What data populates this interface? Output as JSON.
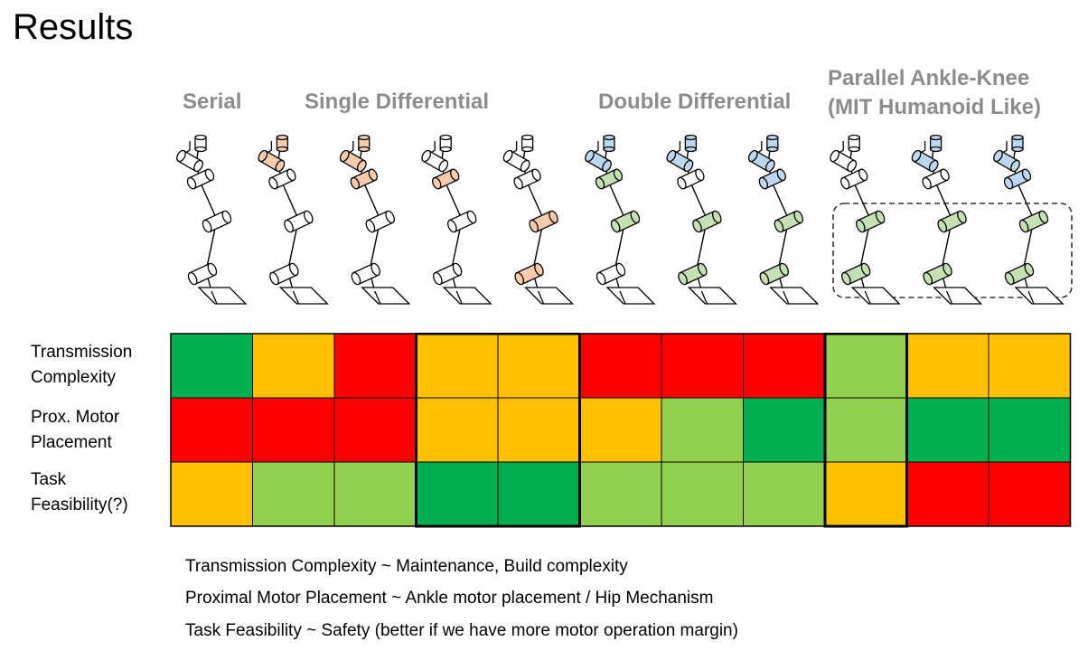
{
  "slide": {
    "title": "Results"
  },
  "categories": {
    "serial": "Serial",
    "single_differential": "Single Differential",
    "double_differential": "Double Differential",
    "parallel_line1": "Parallel Ankle-Knee",
    "parallel_line2": "(MIT Humanoid Like)"
  },
  "colors": {
    "red": "#ff0000",
    "orange": "#ffc000",
    "light_green": "#92d050",
    "dark_green": "#00b050",
    "joint_white": "#ffffff",
    "joint_orange": "#f8cbad",
    "joint_blue": "#bdd7ee",
    "joint_green": "#c5e0b4"
  },
  "robots": [
    [
      "joint_white",
      "joint_white",
      "joint_white",
      "joint_white"
    ],
    [
      "joint_orange",
      "joint_white",
      "joint_white",
      "joint_white"
    ],
    [
      "joint_orange",
      "joint_orange",
      "joint_white",
      "joint_white"
    ],
    [
      "joint_white",
      "joint_orange",
      "joint_white",
      "joint_white"
    ],
    [
      "joint_white",
      "joint_white",
      "joint_orange",
      "joint_orange"
    ],
    [
      "joint_blue",
      "joint_green",
      "joint_green",
      "joint_white"
    ],
    [
      "joint_blue",
      "joint_white",
      "joint_green",
      "joint_green"
    ],
    [
      "joint_blue",
      "joint_blue",
      "joint_green",
      "joint_green"
    ],
    [
      "joint_white",
      "joint_white",
      "joint_green",
      "joint_green"
    ],
    [
      "joint_blue",
      "joint_white",
      "joint_green",
      "joint_green"
    ],
    [
      "joint_blue",
      "joint_blue",
      "joint_green",
      "joint_green"
    ]
  ],
  "matrix": {
    "row_labels": [
      [
        "Transmission",
        "Complexity"
      ],
      [
        "Prox. Motor",
        "Placement"
      ],
      [
        "Task",
        "Feasibility(?)"
      ]
    ],
    "rows": [
      [
        "dark_green",
        "orange",
        "red",
        "orange",
        "orange",
        "red",
        "red",
        "red",
        "light_green",
        "orange",
        "orange"
      ],
      [
        "red",
        "red",
        "red",
        "orange",
        "orange",
        "orange",
        "light_green",
        "dark_green",
        "light_green",
        "dark_green",
        "dark_green"
      ],
      [
        "orange",
        "light_green",
        "light_green",
        "dark_green",
        "dark_green",
        "light_green",
        "light_green",
        "light_green",
        "orange",
        "red",
        "red"
      ]
    ]
  },
  "notes": [
    "Transmission Complexity ~ Maintenance, Build complexity",
    "Proximal Motor Placement ~ Ankle motor placement / Hip Mechanism",
    "Task Feasibility ~ Safety (better if we have more motor operation margin)"
  ]
}
